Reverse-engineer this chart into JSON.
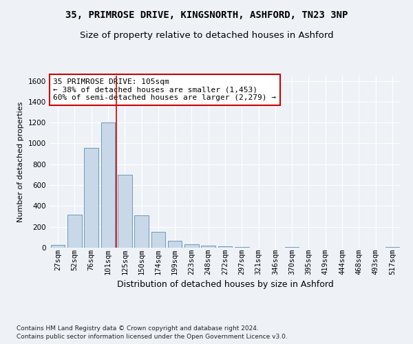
{
  "title1": "35, PRIMROSE DRIVE, KINGSNORTH, ASHFORD, TN23 3NP",
  "title2": "Size of property relative to detached houses in Ashford",
  "xlabel": "Distribution of detached houses by size in Ashford",
  "ylabel": "Number of detached properties",
  "categories": [
    "27sqm",
    "52sqm",
    "76sqm",
    "101sqm",
    "125sqm",
    "150sqm",
    "174sqm",
    "199sqm",
    "223sqm",
    "248sqm",
    "272sqm",
    "297sqm",
    "321sqm",
    "346sqm",
    "370sqm",
    "395sqm",
    "419sqm",
    "444sqm",
    "468sqm",
    "493sqm",
    "517sqm"
  ],
  "values": [
    25,
    320,
    960,
    1200,
    700,
    310,
    155,
    65,
    30,
    18,
    15,
    5,
    0,
    0,
    8,
    0,
    0,
    0,
    0,
    0,
    8
  ],
  "bar_color": "#c8d8e8",
  "bar_edge_color": "#5b8db0",
  "annotation_text": "35 PRIMROSE DRIVE: 105sqm\n← 38% of detached houses are smaller (1,453)\n60% of semi-detached houses are larger (2,279) →",
  "annotation_box_color": "#ffffff",
  "annotation_box_edge_color": "#cc0000",
  "vline_color": "#cc0000",
  "footnote1": "Contains HM Land Registry data © Crown copyright and database right 2024.",
  "footnote2": "Contains public sector information licensed under the Open Government Licence v3.0.",
  "ylim": [
    0,
    1650
  ],
  "yticks": [
    0,
    200,
    400,
    600,
    800,
    1000,
    1200,
    1400,
    1600
  ],
  "background_color": "#eef2f7",
  "grid_color": "#ffffff",
  "vline_x_bin": 3,
  "vline_x_offset": 0.5,
  "title1_fontsize": 10,
  "title2_fontsize": 9.5,
  "xlabel_fontsize": 9,
  "ylabel_fontsize": 8,
  "tick_fontsize": 7.5,
  "annot_fontsize": 8,
  "footnote_fontsize": 6.5
}
